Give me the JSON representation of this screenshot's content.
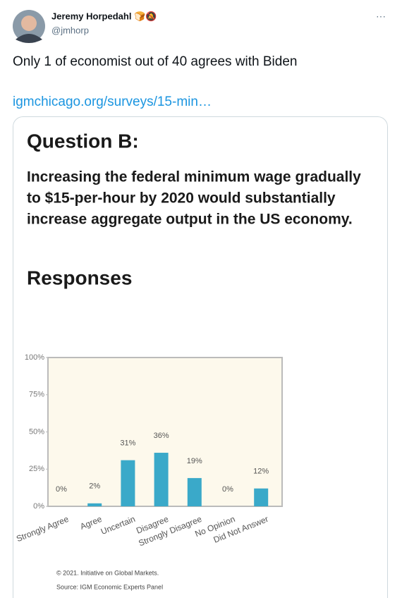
{
  "tweet": {
    "name": "Jeremy Horpedahl 🍞🔕",
    "handle": "@jmhorp",
    "more": "···",
    "text": "Only 1 of economist out of 40 agrees with Biden",
    "link": "igmchicago.org/surveys/15-min…"
  },
  "card": {
    "heading": "Question B:",
    "question_lines": [
      "Increasing the federal minimum wage gradually",
      "to $15-per-hour by 2020 would substantially",
      "increase aggregate output in the US economy."
    ],
    "subheading": "Responses",
    "copyright": "© 2021. Initiative on Global Markets.",
    "source": "Source: IGM Economic Experts Panel"
  },
  "chart_data": {
    "type": "bar",
    "categories": [
      "Strongly Agree",
      "Agree",
      "Uncertain",
      "Disagree",
      "Strongly Disagree",
      "No Opinion",
      "Did Not Answer"
    ],
    "values": [
      0,
      2,
      31,
      36,
      19,
      0,
      12
    ],
    "value_labels": [
      "0%",
      "2%",
      "31%",
      "36%",
      "19%",
      "0%",
      "12%"
    ],
    "color": "#3aa9c9",
    "ylim": [
      0,
      100
    ],
    "yticks": [
      {
        "value": 0,
        "label": "0%"
      },
      {
        "value": 25,
        "label": "25%"
      },
      {
        "value": 50,
        "label": "50%"
      },
      {
        "value": 75,
        "label": "75%"
      },
      {
        "value": 100,
        "label": "100%"
      }
    ]
  }
}
